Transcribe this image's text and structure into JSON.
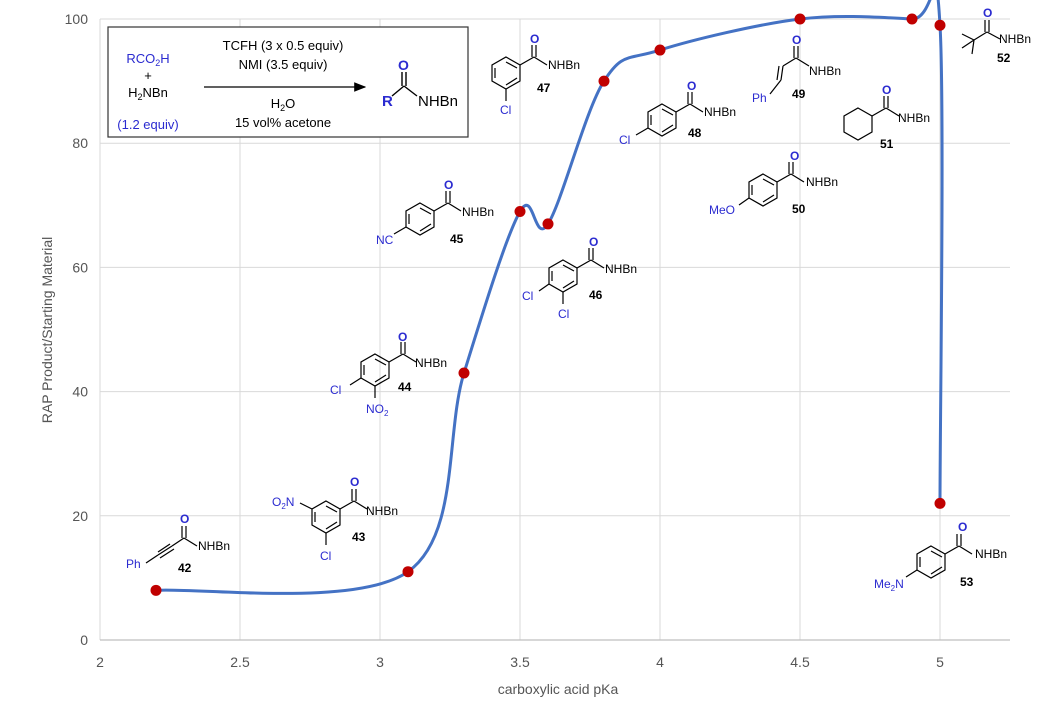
{
  "chart_data": {
    "type": "line",
    "xlabel": "carboxylic acid pKa",
    "ylabel": "RAP Product/Starting Material",
    "xlim": [
      2,
      5.25
    ],
    "ylim": [
      0,
      100
    ],
    "x_ticks": [
      "2",
      "2.5",
      "3",
      "3.5",
      "4",
      "4.5",
      "5"
    ],
    "y_ticks": [
      "0",
      "20",
      "40",
      "60",
      "80",
      "100"
    ],
    "grid": true,
    "series_color": "#4472c4",
    "point_color": "#c00000",
    "points": [
      {
        "x": 2.2,
        "y": 8,
        "compound": "42"
      },
      {
        "x": 3.1,
        "y": 11,
        "compound": "43"
      },
      {
        "x": 3.3,
        "y": 43,
        "compound": "44"
      },
      {
        "x": 3.5,
        "y": 69,
        "compound": "45"
      },
      {
        "x": 3.6,
        "y": 67,
        "compound": "46"
      },
      {
        "x": 3.8,
        "y": 90,
        "compound": "47"
      },
      {
        "x": 4.0,
        "y": 95,
        "compound": "48"
      },
      {
        "x": 4.5,
        "y": 100,
        "compound": "49"
      },
      {
        "x": 4.9,
        "y": 100,
        "compound": "51"
      },
      {
        "x": 5.0,
        "y": 99,
        "compound": "52"
      },
      {
        "x": 5.0,
        "y": 22,
        "compound": "53"
      }
    ]
  },
  "scheme": {
    "reactant1": "RCO",
    "reactant1_sub": "2",
    "reactant1_end": "H",
    "plus": "+",
    "amine_start": "H",
    "amine_sub": "2",
    "amine_end": "NBn",
    "equiv": "(1.2 equiv)",
    "reagent1": "TCFH (3 x 0.5 equiv)",
    "reagent2": "NMI (3.5 equiv)",
    "solvent1_start": "H",
    "solvent1_sub": "2",
    "solvent1_end": "O",
    "solvent2": "15 vol% acetone",
    "product_r": "R",
    "product_o": "O",
    "product_amide": "NHBn"
  },
  "structures": {
    "nhbn": "NHBn",
    "o": "O",
    "cl": "Cl",
    "ph": "Ph",
    "nc": "NC",
    "meo": "MeO",
    "no2_main": "NO",
    "no2_sub": "2",
    "o2n_start": "O",
    "o2n_sub": "2",
    "o2n_end": "N",
    "me2n_start": "Me",
    "me2n_sub": "2",
    "me2n_end": "N",
    "n42": "42",
    "n43": "43",
    "n44": "44",
    "n45": "45",
    "n46": "46",
    "n47": "47",
    "n48": "48",
    "n49": "49",
    "n50": "50",
    "n51": "51",
    "n52": "52",
    "n53": "53"
  }
}
